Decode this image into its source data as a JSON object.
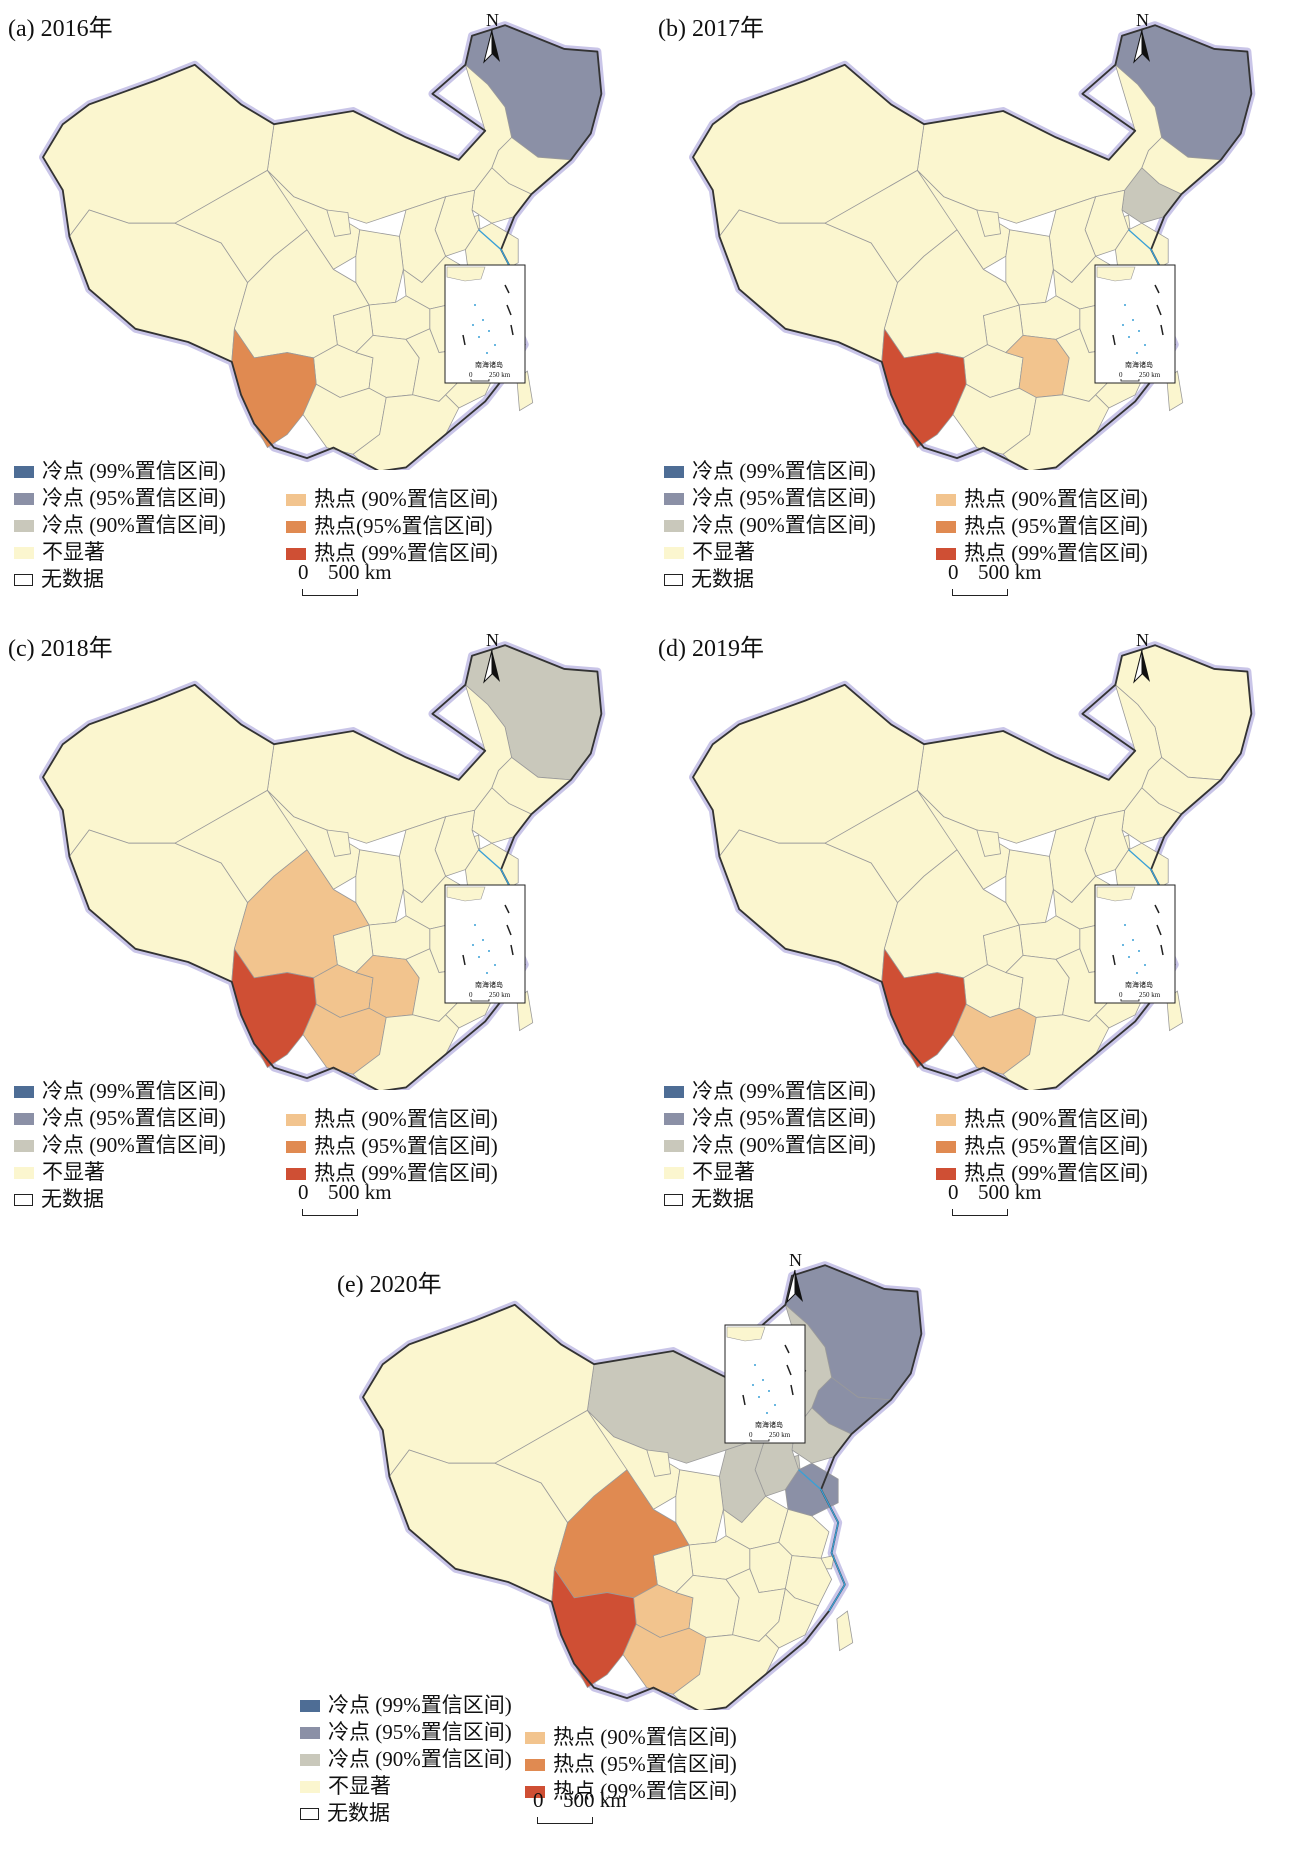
{
  "panels": [
    {
      "id": "a",
      "title": "(a) 2016年",
      "hotspot_regions": [
        {
          "region": "Heilongjiang",
          "category": "cold_95"
        },
        {
          "region": "Yunnan",
          "category": "hot_95"
        }
      ]
    },
    {
      "id": "b",
      "title": "(b) 2017年",
      "hotspot_regions": [
        {
          "region": "Heilongjiang",
          "category": "cold_95"
        },
        {
          "region": "Liaoning",
          "category": "cold_90"
        },
        {
          "region": "Yunnan",
          "category": "hot_99"
        },
        {
          "region": "Hunan",
          "category": "hot_90"
        }
      ]
    },
    {
      "id": "c",
      "title": "(c) 2018年",
      "hotspot_regions": [
        {
          "region": "Heilongjiang",
          "category": "cold_90"
        },
        {
          "region": "Yunnan",
          "category": "hot_99"
        },
        {
          "region": "Sichuan",
          "category": "hot_90"
        },
        {
          "region": "Guizhou",
          "category": "hot_90"
        },
        {
          "region": "Hunan",
          "category": "hot_90"
        },
        {
          "region": "Guangxi",
          "category": "hot_90"
        }
      ]
    },
    {
      "id": "d",
      "title": "(d) 2019年",
      "hotspot_regions": [
        {
          "region": "Yunnan",
          "category": "hot_99"
        },
        {
          "region": "Guangxi",
          "category": "hot_90"
        }
      ]
    },
    {
      "id": "e",
      "title": "(e) 2020年",
      "hotspot_regions": [
        {
          "region": "Heilongjiang",
          "category": "cold_95"
        },
        {
          "region": "Jilin",
          "category": "cold_95"
        },
        {
          "region": "Shandong",
          "category": "cold_95"
        },
        {
          "region": "Inner Mongolia",
          "category": "cold_90"
        },
        {
          "region": "Liaoning",
          "category": "cold_90"
        },
        {
          "region": "Hebei",
          "category": "cold_90"
        },
        {
          "region": "Beijing",
          "category": "cold_90"
        },
        {
          "region": "Tianjin",
          "category": "cold_90"
        },
        {
          "region": "Shanxi",
          "category": "cold_90"
        },
        {
          "region": "Yunnan",
          "category": "hot_99"
        },
        {
          "region": "Sichuan",
          "category": "hot_95"
        },
        {
          "region": "Guizhou",
          "category": "hot_90"
        },
        {
          "region": "Guangxi",
          "category": "hot_90"
        }
      ]
    }
  ],
  "legend": {
    "left": [
      {
        "key": "cold_99",
        "label": "冷点 (99%置信区间)",
        "color": "#4e6d95"
      },
      {
        "key": "cold_95",
        "label": "冷点 (95%置信区间)",
        "color": "#8b90a6"
      },
      {
        "key": "cold_90",
        "label": "冷点 (90%置信区间)",
        "color": "#c9c8bb"
      },
      {
        "key": "not_significant",
        "label": "不显著",
        "color": "#fbf6cf"
      },
      {
        "key": "no_data",
        "label": "无数据",
        "color": "#ffffff"
      }
    ],
    "right": [
      {
        "key": "hot_90",
        "label": "热点 (90%置信区间)",
        "color": "#f2c48e"
      },
      {
        "key": "hot_95",
        "label": "热点 (95%置信区间)",
        "color": "#e08a51"
      },
      {
        "key": "hot_99",
        "label": "热点 (99%置信区间)",
        "color": "#cf4f34"
      }
    ],
    "right_panel_a": [
      {
        "key": "hot_90",
        "label": "热点 (90%置信区间)",
        "color": "#f2c48e"
      },
      {
        "key": "hot_95",
        "label": "热点(95%置信区间)",
        "color": "#e08a51"
      },
      {
        "key": "hot_99",
        "label": "热点 (99%置信区间)",
        "color": "#cf4f34"
      }
    ]
  },
  "scalebar": {
    "zero": "0",
    "value": "500 km"
  },
  "north_arrow": {
    "label": "N"
  },
  "inset": {
    "title": "南海诸岛",
    "scale": "250 km",
    "zero": "0"
  },
  "colors": {
    "not_significant": "#fbf6cf",
    "border": "#9a9a9a",
    "outline_shadow": "#c9c5e8",
    "outline": "#333333",
    "water": "#3aa0d6"
  }
}
